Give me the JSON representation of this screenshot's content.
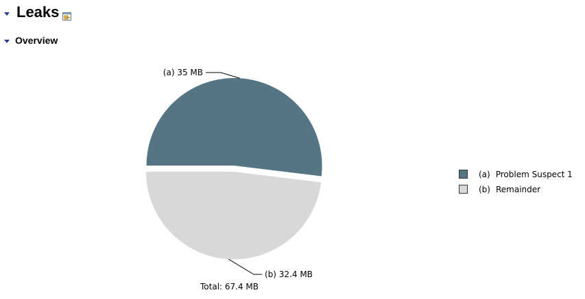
{
  "leaks": {
    "title": "Leaks",
    "edit_icon": "edit-report-icon"
  },
  "overview": {
    "title": "Overview"
  },
  "colors": {
    "twisty": "#1c3f8c",
    "problem_suspect": "#557585",
    "remainder": "#d8d8d8",
    "leader_line": "#000000"
  },
  "chart_data": {
    "type": "pie",
    "title": "",
    "slices": [
      {
        "letter": "(a)",
        "label": "Problem Suspect 1",
        "value": 35,
        "display": "35 MB",
        "exploded": true
      },
      {
        "letter": "(b)",
        "label": "Remainder",
        "value": 32.4,
        "display": "32.4 MB",
        "exploded": false
      }
    ],
    "unit": "MB",
    "legend_position": "right",
    "total_label": "Total: 67.4 MB"
  }
}
